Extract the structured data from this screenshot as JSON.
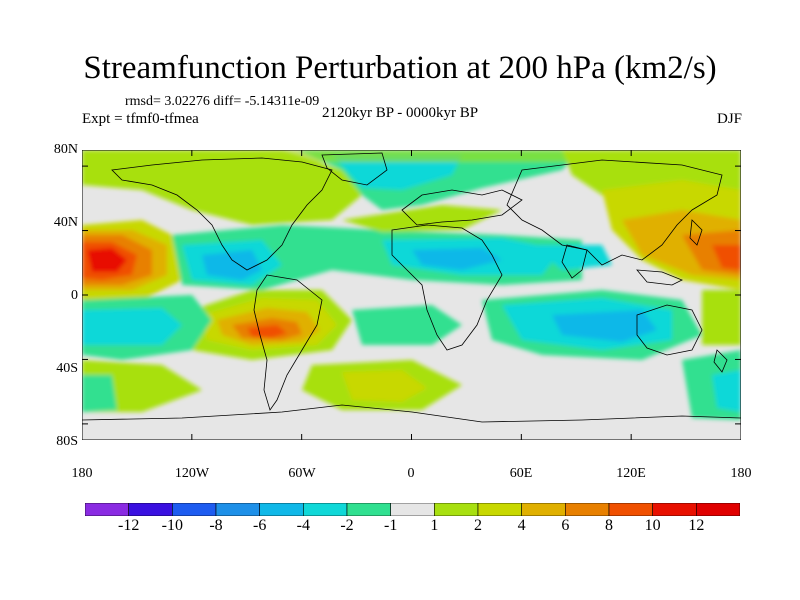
{
  "title": "Streamfunction Perturbation at 200 hPa (km2/s)",
  "stats": "rmsd= 3.02276 diff= -5.14311e-09",
  "experiment": "Expt = tfmf0-tfmea",
  "period": "2120kyr BP - 0000kyr BP",
  "season": "DJF",
  "lat_labels": [
    "80N",
    "40N",
    "0",
    "40S",
    "80S"
  ],
  "lon_labels": [
    "180",
    "120W",
    "60W",
    "0",
    "60E",
    "120E",
    "180"
  ],
  "colorbar": {
    "labels": [
      "-12",
      "-10",
      "-8",
      "-6",
      "-4",
      "-2",
      "-1",
      "1",
      "2",
      "4",
      "6",
      "8",
      "10",
      "12"
    ],
    "colors": [
      "#8a2be2",
      "#3a10e0",
      "#1e5cf0",
      "#1e90e8",
      "#10b8e8",
      "#10d8d8",
      "#30e090",
      "#e6e6e6",
      "#a8e010",
      "#c8d800",
      "#e0b000",
      "#e88000",
      "#f05000",
      "#e81000",
      "#e00000"
    ]
  },
  "colors": {
    "land_outline": "#000000",
    "neutral": "#e6e6e6"
  }
}
